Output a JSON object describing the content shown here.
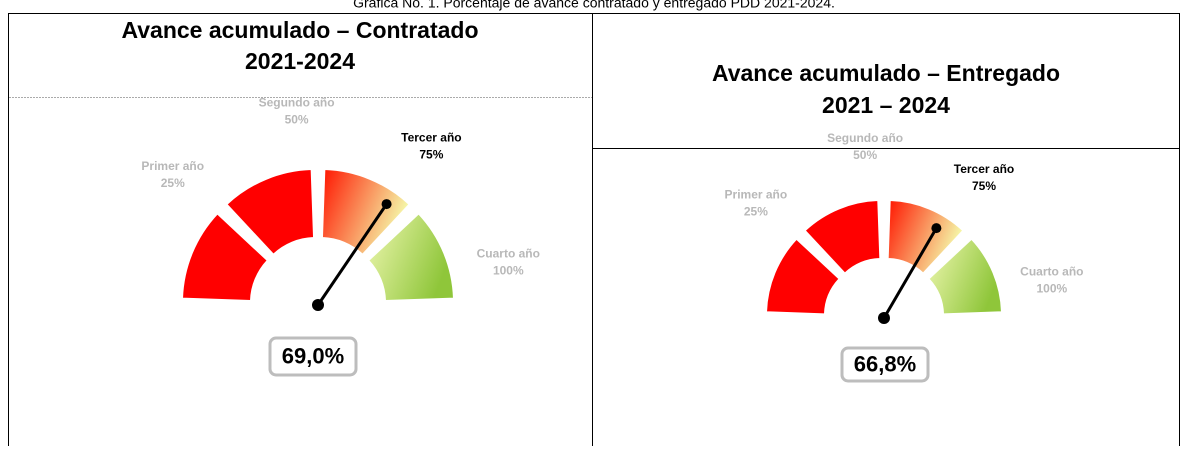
{
  "caption": "Gráfica No. 1. Porcentaje de avance contratado y entregado PDD 2021-2024.",
  "chart_data": [
    {
      "type": "gauge",
      "title": [
        "Avance acumulado – Contratado",
        "2021-2024"
      ],
      "categories": [
        "Primer año",
        "Segundo año",
        "Tercer año",
        "Cuarto año"
      ],
      "ticks": [
        {
          "value": 25,
          "label": "25%"
        },
        {
          "value": 50,
          "label": "50%"
        },
        {
          "value": 75,
          "label": "75%"
        },
        {
          "value": 100,
          "label": "100%"
        }
      ],
      "colors": [
        [
          "#ff0000",
          "#ff0000"
        ],
        [
          "#ff0000",
          "#ff0000"
        ],
        [
          "#ff1500",
          "#f5f8a8"
        ],
        [
          "#eef7b0",
          "#8fc63a"
        ]
      ],
      "ylim": [
        0,
        100
      ],
      "value": 69.0,
      "value_label": "69,0%"
    },
    {
      "type": "gauge",
      "title": [
        "Avance acumulado – Entregado",
        "2021 – 2024"
      ],
      "categories": [
        "Primer año",
        "Segundo año",
        "Tercer año",
        "Cuarto año"
      ],
      "ticks": [
        {
          "value": 25,
          "label": "25%"
        },
        {
          "value": 50,
          "label": "50%"
        },
        {
          "value": 75,
          "label": "75%"
        },
        {
          "value": 100,
          "label": "100%"
        }
      ],
      "colors": [
        [
          "#ff0000",
          "#ff0000"
        ],
        [
          "#ff0000",
          "#ff0000"
        ],
        [
          "#ff1500",
          "#f5f8a8"
        ],
        [
          "#eef7b0",
          "#8fc63a"
        ]
      ],
      "ylim": [
        0,
        100
      ],
      "value": 66.8,
      "value_label": "66,8%"
    }
  ]
}
